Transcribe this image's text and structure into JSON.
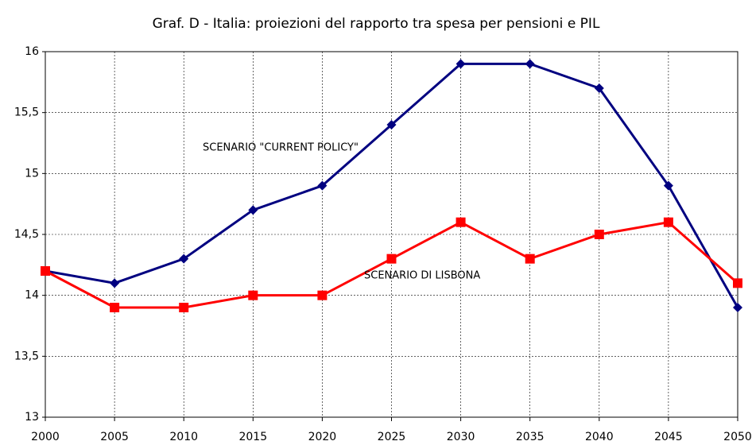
{
  "chart_data": {
    "type": "line",
    "title": "Graf. D  -  Italia: proiezioni del rapporto tra spesa per pensioni e PIL",
    "x": [
      2000,
      2005,
      2010,
      2015,
      2020,
      2025,
      2030,
      2035,
      2040,
      2045,
      2050
    ],
    "xlim": [
      2000,
      2050
    ],
    "xticks": [
      2000,
      2005,
      2010,
      2015,
      2020,
      2025,
      2030,
      2035,
      2040,
      2045,
      2050
    ],
    "ylim": [
      13,
      16
    ],
    "yticks": [
      13,
      {
        "value": 13.5,
        "label": "13,5"
      },
      14,
      {
        "value": 14.5,
        "label": "14,5"
      },
      15,
      {
        "value": 15.5,
        "label": "15,5"
      },
      16
    ],
    "grid": true,
    "series": [
      {
        "name": "SCENARIO \"CURRENT POLICY\"",
        "color": "#000080",
        "marker": "diamond",
        "values": [
          14.2,
          14.1,
          14.3,
          14.7,
          14.9,
          15.4,
          15.9,
          15.9,
          15.7,
          14.9,
          13.9
        ]
      },
      {
        "name": "SCENARIO DI LISBONA",
        "color": "#ff0000",
        "marker": "square",
        "values": [
          14.2,
          13.9,
          13.9,
          14.0,
          14.0,
          14.3,
          14.6,
          14.3,
          14.5,
          14.6,
          14.1
        ]
      }
    ]
  }
}
